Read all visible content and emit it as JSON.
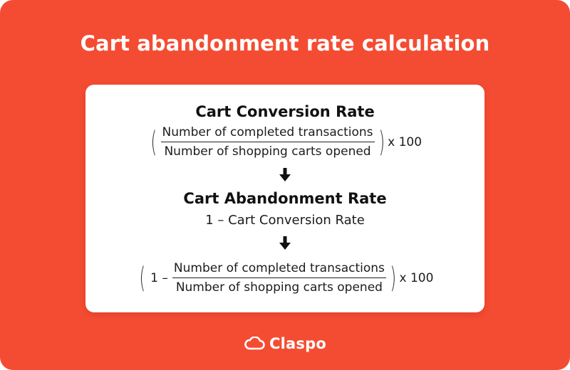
{
  "title": "Cart abandonment rate calculation",
  "conversion": {
    "heading": "Cart Conversion Rate",
    "numerator": "Number of completed transactions",
    "denominator": "Number of shopping carts opened",
    "multiplier": "x 100"
  },
  "abandonment": {
    "heading": "Cart Abandonment Rate",
    "subtitle": "1 – Cart Conversion Rate"
  },
  "expanded": {
    "prefix": "1 –",
    "numerator": "Number of completed transactions",
    "denominator": "Number of shopping carts opened",
    "multiplier": "x 100"
  },
  "brand": {
    "name": "Claspo",
    "icon": "cloud-logo-icon"
  },
  "icons": {
    "arrow": "arrow-down-icon"
  },
  "colors": {
    "background": "#f44c32",
    "card": "#ffffff",
    "text": "#111111"
  }
}
